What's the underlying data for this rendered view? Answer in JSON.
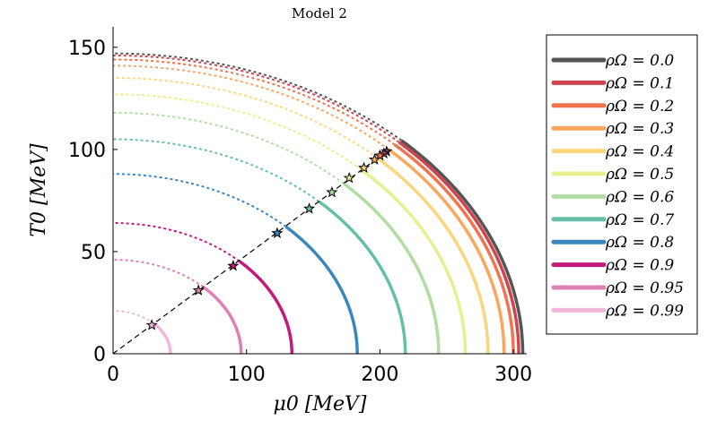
{
  "chart_data": {
    "type": "line",
    "title": "Model 2",
    "xlabel": "μ0 [MeV]",
    "ylabel": "T0 [MeV]",
    "xlim": [
      0,
      310
    ],
    "ylim": [
      0,
      160
    ],
    "xticks": [
      "0",
      "100",
      "200",
      "300"
    ],
    "yticks": [
      "0",
      "50",
      "100",
      "150"
    ],
    "xtick_values": [
      0,
      100,
      200,
      300
    ],
    "ytick_values": [
      0,
      50,
      100,
      150
    ],
    "legend_position": "outside-right",
    "grid": false,
    "series": [
      {
        "name": "ρΩ = 0.0",
        "color": "#555555",
        "mu_max": 307,
        "T_max": 147,
        "star": [
          205,
          99
        ]
      },
      {
        "name": "ρΩ = 0.1",
        "color": "#d0434f",
        "mu_max": 304,
        "T_max": 146,
        "star": [
          203,
          98
        ]
      },
      {
        "name": "ρΩ = 0.2",
        "color": "#f0744d",
        "mu_max": 300,
        "T_max": 144,
        "star": [
          200,
          97
        ]
      },
      {
        "name": "ρΩ = 0.3",
        "color": "#f9a75e",
        "mu_max": 293,
        "T_max": 141,
        "star": [
          196,
          95
        ]
      },
      {
        "name": "ρΩ = 0.4",
        "color": "#fcd67d",
        "mu_max": 281,
        "T_max": 135,
        "star": [
          188,
          91
        ]
      },
      {
        "name": "ρΩ = 0.5",
        "color": "#e5f08e",
        "mu_max": 264,
        "T_max": 127,
        "star": [
          177,
          86
        ]
      },
      {
        "name": "ρΩ = 0.6",
        "color": "#b1dca2",
        "mu_max": 244,
        "T_max": 118,
        "star": [
          164,
          79
        ]
      },
      {
        "name": "ρΩ = 0.7",
        "color": "#66c0a6",
        "mu_max": 219,
        "T_max": 105,
        "star": [
          147,
          71
        ]
      },
      {
        "name": "ρΩ = 0.8",
        "color": "#3a87bd",
        "mu_max": 183,
        "T_max": 88,
        "star": [
          123,
          59
        ]
      },
      {
        "name": "ρΩ = 0.9",
        "color": "#c4197b",
        "mu_max": 134,
        "T_max": 64,
        "star": [
          90,
          43
        ]
      },
      {
        "name": "ρΩ = 0.95",
        "color": "#df80b5",
        "mu_max": 96,
        "T_max": 46,
        "star": [
          64,
          31
        ]
      },
      {
        "name": "ρΩ = 0.99",
        "color": "#f2b6db",
        "mu_max": 43,
        "T_max": 21,
        "star": [
          29,
          14
        ]
      }
    ],
    "diagonal_line": {
      "style": "dashed",
      "color": "#000000",
      "from": [
        0,
        0
      ],
      "to": [
        207,
        100
      ]
    },
    "line_styles": {
      "crossover": "dotted",
      "first_order": "solid"
    }
  }
}
